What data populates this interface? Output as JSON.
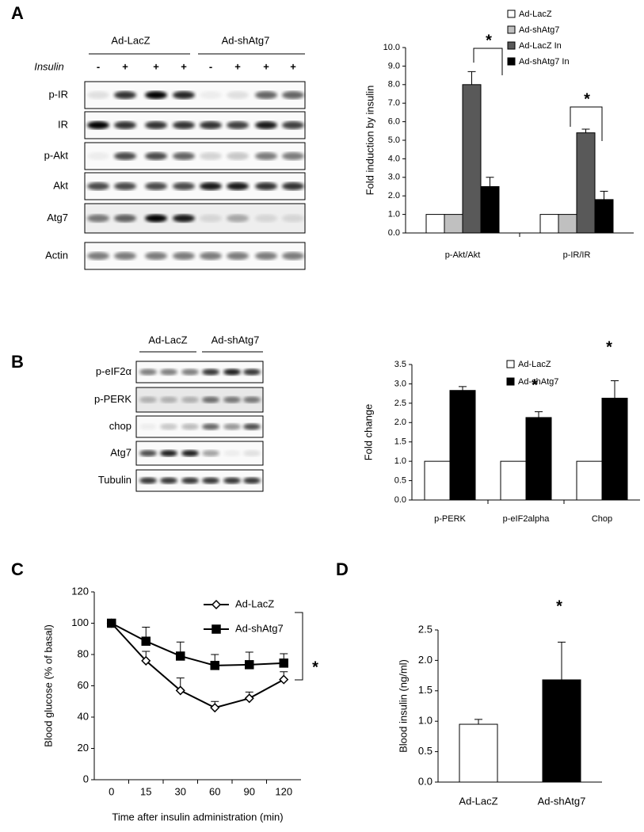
{
  "panel_labels": [
    "A",
    "B",
    "C",
    "D"
  ],
  "blot_a": {
    "groups": [
      "Ad-LacZ",
      "Ad-shAtg7"
    ],
    "treatment_label": "Insulin",
    "treatment": [
      "-",
      "+",
      "+",
      "+",
      "-",
      "+",
      "+",
      "+"
    ],
    "rows": [
      "p-IR",
      "IR",
      "p-Akt",
      "Akt",
      "Atg7",
      "Actin"
    ]
  },
  "blot_b": {
    "groups": [
      "Ad-LacZ",
      "Ad-shAtg7"
    ],
    "rows": [
      "p-eIF2α",
      "p-PERK",
      "chop",
      "Atg7",
      "Tubulin"
    ]
  },
  "chart_data": [
    {
      "type": "bar",
      "ylabel": "Fold induction by  insulin",
      "categories": [
        "p-Akt/Akt",
        "p-IR/IR"
      ],
      "series": [
        {
          "name": "Ad-LacZ",
          "color": "#ffffff",
          "values": [
            1,
            1
          ],
          "errors": [
            0,
            0
          ]
        },
        {
          "name": "Ad-shAtg7",
          "color": "#c0c0c0",
          "values": [
            1,
            1
          ],
          "errors": [
            0,
            0
          ]
        },
        {
          "name": "Ad-LacZ In",
          "color": "#595959",
          "values": [
            8.0,
            5.4
          ],
          "errors": [
            0.7,
            0.2
          ]
        },
        {
          "name": "Ad-shAtg7 In",
          "color": "#000000",
          "values": [
            2.5,
            1.8
          ],
          "errors": [
            0.5,
            0.45
          ]
        }
      ],
      "ylim": [
        0,
        10
      ],
      "yticks": [
        {
          "value": 0,
          "label": "0.0"
        },
        {
          "value": 1,
          "label": "1.0"
        },
        {
          "value": 2,
          "label": "2.0"
        },
        {
          "value": 3,
          "label": "3.0"
        },
        {
          "value": 4,
          "label": "4.0"
        },
        {
          "value": 5,
          "label": "5.0"
        },
        {
          "value": 6,
          "label": "6.0"
        },
        {
          "value": 7,
          "label": "7.0"
        },
        {
          "value": 8,
          "label": "8.0"
        },
        {
          "value": 9,
          "label": "9.0"
        },
        {
          "value": 10,
          "label": "10.0"
        }
      ],
      "annotations": [
        "*",
        "*"
      ],
      "legend": "top-right"
    },
    {
      "type": "bar",
      "ylabel": "Fold change",
      "categories": [
        "p-PERK",
        "p-eIF2alpha",
        "Chop"
      ],
      "series": [
        {
          "name": "Ad-LacZ",
          "color": "#ffffff",
          "values": [
            1,
            1,
            1
          ],
          "errors": [
            0,
            0,
            0
          ]
        },
        {
          "name": "Ad-shAtg7",
          "color": "#000000",
          "values": [
            2.83,
            2.13,
            2.63
          ],
          "errors": [
            0.1,
            0.15,
            0.45
          ]
        }
      ],
      "ylim": [
        0,
        3.5
      ],
      "yticks": [
        {
          "value": 0,
          "label": "0.0"
        },
        {
          "value": 0.5,
          "label": "0.5"
        },
        {
          "value": 1,
          "label": "1.0"
        },
        {
          "value": 1.5,
          "label": "1.5"
        },
        {
          "value": 2,
          "label": "2.0"
        },
        {
          "value": 2.5,
          "label": "2.5"
        },
        {
          "value": 3,
          "label": "3.0"
        },
        {
          "value": 3.5,
          "label": "3.5"
        }
      ],
      "annotations": [
        "*",
        "*",
        "*"
      ],
      "legend": "top-right"
    },
    {
      "type": "line",
      "xlabel": "Time after insulin administration (min)",
      "ylabel": "Blood glucose (% of basal)",
      "categories": [
        "0",
        "15",
        "30",
        "60",
        "90",
        "120"
      ],
      "series": [
        {
          "name": "Ad-LacZ",
          "color": "#ffffff",
          "marker": "diamond",
          "values": [
            100,
            76,
            57,
            46,
            52,
            64
          ],
          "errors": [
            0,
            6,
            8,
            4,
            4,
            5
          ]
        },
        {
          "name": "Ad-shAtg7",
          "color": "#000000",
          "marker": "square",
          "values": [
            100,
            88.5,
            79,
            73,
            73.5,
            74.5
          ],
          "errors": [
            0,
            9,
            9,
            7,
            8,
            6
          ]
        }
      ],
      "ylim": [
        0,
        120
      ],
      "yticks": [
        0,
        20,
        40,
        60,
        80,
        100,
        120
      ],
      "annotations": [
        "*"
      ],
      "legend": "top-right"
    },
    {
      "type": "bar",
      "ylabel": "Blood insulin (ng/ml)",
      "categories": [
        "Ad-LacZ",
        "Ad-shAtg7"
      ],
      "values": [
        0.95,
        1.68
      ],
      "errors": [
        0.08,
        0.62
      ],
      "colors": [
        "#ffffff",
        "#000000"
      ],
      "ylim": [
        0,
        2.5
      ],
      "yticks": [
        {
          "value": 0,
          "label": "0.0"
        },
        {
          "value": 0.5,
          "label": "0.5"
        },
        {
          "value": 1,
          "label": "1.0"
        },
        {
          "value": 1.5,
          "label": "1.5"
        },
        {
          "value": 2,
          "label": "2.0"
        },
        {
          "value": 2.5,
          "label": "2.5"
        }
      ],
      "annotations": [
        "*"
      ]
    }
  ]
}
